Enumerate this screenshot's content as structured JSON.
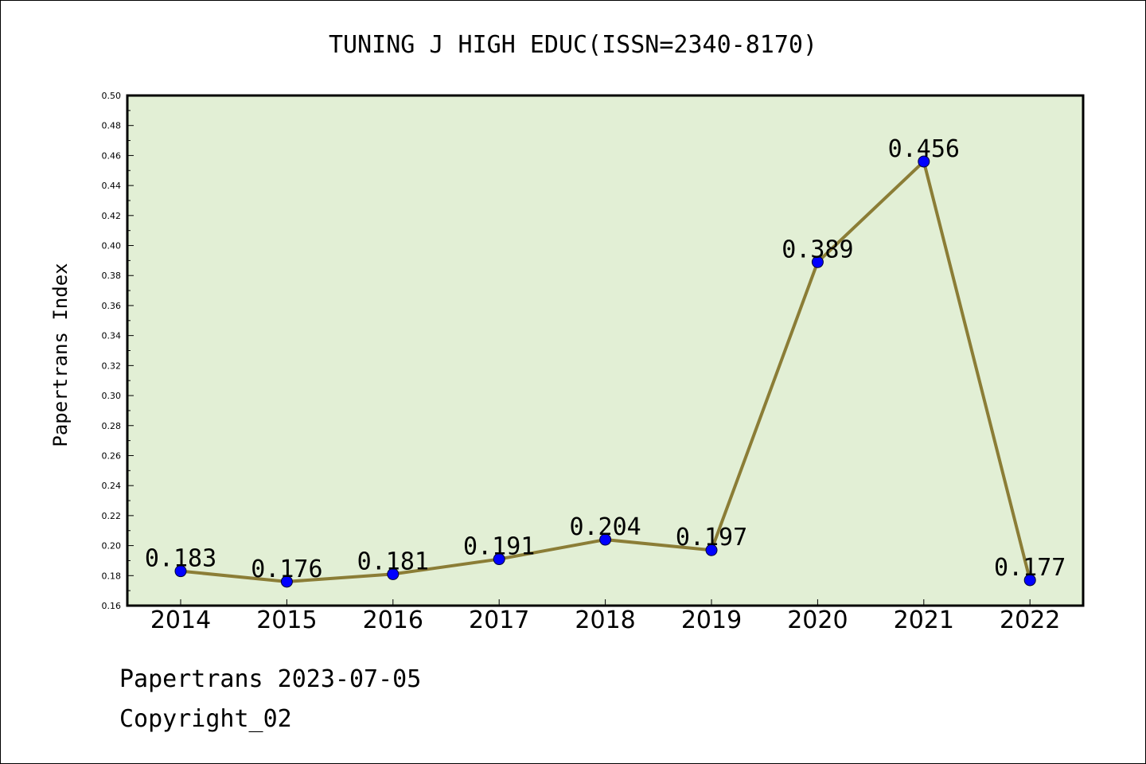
{
  "chart_data": {
    "type": "line",
    "title": "TUNING J HIGH EDUC(ISSN=2340-8170)",
    "xlabel": "",
    "ylabel": "Papertrans Index",
    "categories": [
      "2014",
      "2015",
      "2016",
      "2017",
      "2018",
      "2019",
      "2020",
      "2021",
      "2022"
    ],
    "series": [
      {
        "values": [
          0.183,
          0.176,
          0.181,
          0.191,
          0.204,
          0.197,
          0.389,
          0.456,
          0.177
        ],
        "data_labels": [
          "0.183",
          "0.176",
          "0.181",
          "0.191",
          "0.204",
          "0.197",
          "0.389",
          "0.456",
          "0.177"
        ]
      }
    ],
    "ylim": [
      0.16,
      0.5
    ],
    "y_ticks": [
      "0.16",
      "0.18",
      "0.20",
      "0.22",
      "0.24",
      "0.26",
      "0.28",
      "0.30",
      "0.32",
      "0.34",
      "0.36",
      "0.38",
      "0.40",
      "0.42",
      "0.44",
      "0.46",
      "0.48",
      "0.50"
    ],
    "grid": false,
    "colors": {
      "plot_background": "#e2efd5",
      "line": "#8b7d36",
      "marker": "#0000ff",
      "axis": "#000000"
    }
  },
  "footer": {
    "line1": "Papertrans 2023-07-05",
    "line2": "Copyright_02"
  }
}
